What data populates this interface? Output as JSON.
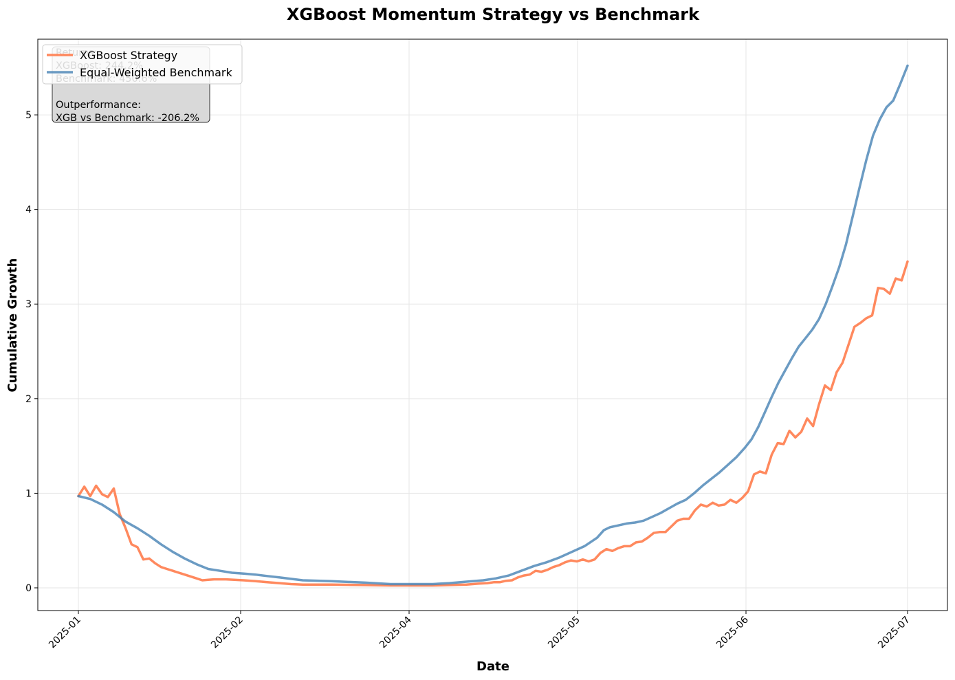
{
  "chart_data": {
    "type": "line",
    "title": "XGBoost Momentum Strategy vs Benchmark",
    "xlabel": "Date",
    "ylabel": "Cumulative Growth",
    "x_ticks": [
      "2025-01",
      "2025-02",
      "2025-04",
      "2025-05",
      "2025-06",
      "2025-07"
    ],
    "y_ticks": [
      0,
      1,
      2,
      3,
      4,
      5
    ],
    "ylim": [
      -0.24,
      5.8
    ],
    "grid": true,
    "legend_position": "top-left",
    "stats_box": {
      "lines": [
        "Returns:",
        "XGBoost: 244.2%",
        "Benchmark: 450.6%",
        "",
        "Outperformance:",
        "XGB vs Benchmark: -206.2%"
      ]
    },
    "series": [
      {
        "name": "XGBoost Strategy",
        "color": "#ff7f50",
        "points": [
          [
            0.0,
            0.97
          ],
          [
            0.7,
            1.07
          ],
          [
            1.4,
            0.97
          ],
          [
            2.1,
            1.08
          ],
          [
            2.8,
            0.99
          ],
          [
            3.5,
            0.96
          ],
          [
            4.2,
            1.05
          ],
          [
            4.9,
            0.78
          ],
          [
            5.6,
            0.63
          ],
          [
            6.3,
            0.46
          ],
          [
            7.0,
            0.43
          ],
          [
            7.7,
            0.3
          ],
          [
            8.4,
            0.31
          ],
          [
            9.1,
            0.26
          ],
          [
            9.8,
            0.22
          ],
          [
            10.5,
            0.2
          ],
          [
            11.2,
            0.18
          ],
          [
            12.6,
            0.14
          ],
          [
            14.0,
            0.1
          ],
          [
            14.7,
            0.08
          ],
          [
            15.4,
            0.085
          ],
          [
            16.1,
            0.09
          ],
          [
            17.5,
            0.09
          ],
          [
            19.6,
            0.08
          ],
          [
            21.0,
            0.07
          ],
          [
            22.4,
            0.06
          ],
          [
            23.8,
            0.05
          ],
          [
            25.2,
            0.04
          ],
          [
            26.6,
            0.035
          ],
          [
            30.0,
            0.035
          ],
          [
            34.0,
            0.03
          ],
          [
            37.0,
            0.025
          ],
          [
            40.0,
            0.025
          ],
          [
            42.0,
            0.025
          ],
          [
            44.0,
            0.03
          ],
          [
            46.0,
            0.035
          ],
          [
            47.5,
            0.045
          ],
          [
            48.5,
            0.05
          ],
          [
            49.3,
            0.06
          ],
          [
            50.0,
            0.06
          ],
          [
            50.7,
            0.075
          ],
          [
            51.4,
            0.08
          ],
          [
            52.1,
            0.11
          ],
          [
            52.8,
            0.13
          ],
          [
            53.5,
            0.14
          ],
          [
            54.2,
            0.18
          ],
          [
            54.9,
            0.17
          ],
          [
            55.6,
            0.19
          ],
          [
            56.3,
            0.22
          ],
          [
            57.0,
            0.24
          ],
          [
            57.7,
            0.27
          ],
          [
            58.4,
            0.29
          ],
          [
            59.1,
            0.28
          ],
          [
            59.8,
            0.3
          ],
          [
            60.5,
            0.28
          ],
          [
            61.2,
            0.3
          ],
          [
            61.9,
            0.37
          ],
          [
            62.6,
            0.41
          ],
          [
            63.3,
            0.39
          ],
          [
            64.0,
            0.42
          ],
          [
            64.7,
            0.44
          ],
          [
            65.4,
            0.44
          ],
          [
            66.1,
            0.48
          ],
          [
            66.8,
            0.49
          ],
          [
            67.5,
            0.53
          ],
          [
            68.2,
            0.58
          ],
          [
            68.9,
            0.59
          ],
          [
            69.6,
            0.59
          ],
          [
            70.3,
            0.65
          ],
          [
            71.0,
            0.71
          ],
          [
            71.7,
            0.73
          ],
          [
            72.4,
            0.73
          ],
          [
            73.1,
            0.82
          ],
          [
            73.8,
            0.88
          ],
          [
            74.5,
            0.86
          ],
          [
            75.2,
            0.9
          ],
          [
            75.9,
            0.87
          ],
          [
            76.6,
            0.88
          ],
          [
            77.3,
            0.93
          ],
          [
            78.0,
            0.9
          ],
          [
            78.7,
            0.95
          ],
          [
            79.4,
            1.02
          ],
          [
            80.1,
            1.2
          ],
          [
            80.8,
            1.23
          ],
          [
            81.5,
            1.21
          ],
          [
            82.2,
            1.41
          ],
          [
            82.9,
            1.53
          ],
          [
            83.6,
            1.52
          ],
          [
            84.3,
            1.66
          ],
          [
            85.0,
            1.59
          ],
          [
            85.7,
            1.65
          ],
          [
            86.4,
            1.79
          ],
          [
            87.1,
            1.71
          ],
          [
            87.8,
            1.94
          ],
          [
            88.5,
            2.14
          ],
          [
            89.2,
            2.09
          ],
          [
            89.9,
            2.28
          ],
          [
            90.6,
            2.38
          ],
          [
            91.3,
            2.57
          ],
          [
            92.0,
            2.76
          ],
          [
            92.7,
            2.8
          ],
          [
            93.4,
            2.85
          ],
          [
            94.1,
            2.88
          ],
          [
            94.8,
            3.17
          ],
          [
            95.5,
            3.16
          ],
          [
            96.2,
            3.11
          ],
          [
            96.9,
            3.27
          ],
          [
            97.6,
            3.25
          ],
          [
            98.3,
            3.45
          ]
        ]
      },
      {
        "name": "Equal-Weighted Benchmark",
        "color": "#4682b4",
        "points": [
          [
            0.0,
            0.97
          ],
          [
            1.4,
            0.94
          ],
          [
            2.8,
            0.88
          ],
          [
            4.2,
            0.8
          ],
          [
            5.6,
            0.7
          ],
          [
            7.0,
            0.63
          ],
          [
            8.4,
            0.55
          ],
          [
            9.8,
            0.46
          ],
          [
            11.2,
            0.38
          ],
          [
            12.6,
            0.31
          ],
          [
            14.0,
            0.25
          ],
          [
            15.4,
            0.2
          ],
          [
            16.8,
            0.18
          ],
          [
            18.2,
            0.16
          ],
          [
            19.6,
            0.15
          ],
          [
            21.0,
            0.14
          ],
          [
            22.4,
            0.125
          ],
          [
            23.8,
            0.11
          ],
          [
            25.2,
            0.095
          ],
          [
            26.6,
            0.08
          ],
          [
            30.0,
            0.07
          ],
          [
            34.0,
            0.055
          ],
          [
            37.0,
            0.04
          ],
          [
            40.0,
            0.04
          ],
          [
            42.0,
            0.04
          ],
          [
            44.0,
            0.05
          ],
          [
            46.0,
            0.065
          ],
          [
            48.0,
            0.08
          ],
          [
            49.5,
            0.1
          ],
          [
            51.0,
            0.13
          ],
          [
            52.5,
            0.18
          ],
          [
            54.0,
            0.23
          ],
          [
            55.5,
            0.27
          ],
          [
            57.0,
            0.32
          ],
          [
            58.5,
            0.38
          ],
          [
            60.0,
            0.44
          ],
          [
            61.5,
            0.53
          ],
          [
            62.3,
            0.61
          ],
          [
            63.0,
            0.64
          ],
          [
            64.0,
            0.66
          ],
          [
            65.0,
            0.68
          ],
          [
            66.0,
            0.69
          ],
          [
            67.0,
            0.71
          ],
          [
            68.0,
            0.75
          ],
          [
            69.0,
            0.79
          ],
          [
            70.0,
            0.84
          ],
          [
            71.0,
            0.89
          ],
          [
            72.0,
            0.93
          ],
          [
            73.0,
            1.0
          ],
          [
            74.0,
            1.08
          ],
          [
            75.0,
            1.15
          ],
          [
            76.0,
            1.22
          ],
          [
            77.0,
            1.3
          ],
          [
            78.0,
            1.38
          ],
          [
            79.0,
            1.48
          ],
          [
            79.8,
            1.57
          ],
          [
            80.6,
            1.7
          ],
          [
            81.4,
            1.86
          ],
          [
            82.2,
            2.02
          ],
          [
            83.0,
            2.17
          ],
          [
            83.8,
            2.3
          ],
          [
            84.6,
            2.43
          ],
          [
            85.4,
            2.55
          ],
          [
            86.2,
            2.64
          ],
          [
            87.0,
            2.73
          ],
          [
            87.8,
            2.84
          ],
          [
            88.6,
            3.0
          ],
          [
            89.4,
            3.19
          ],
          [
            90.2,
            3.39
          ],
          [
            91.0,
            3.63
          ],
          [
            91.8,
            3.93
          ],
          [
            92.6,
            4.23
          ],
          [
            93.4,
            4.52
          ],
          [
            94.2,
            4.78
          ],
          [
            95.0,
            4.95
          ],
          [
            95.8,
            5.08
          ],
          [
            96.6,
            5.15
          ],
          [
            97.4,
            5.32
          ],
          [
            98.3,
            5.52
          ]
        ]
      }
    ]
  }
}
